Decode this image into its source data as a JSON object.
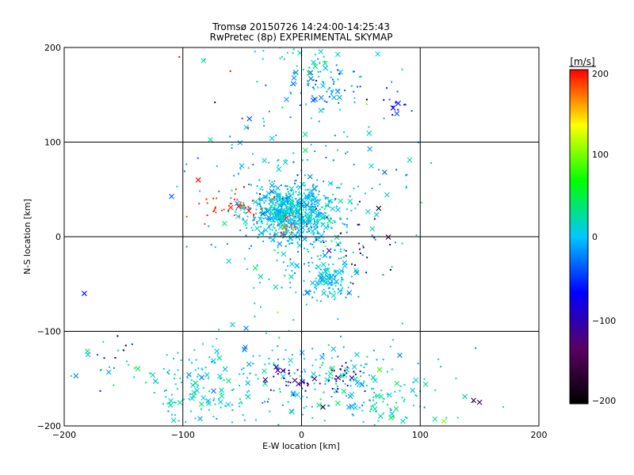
{
  "chart_data": {
    "type": "scatter",
    "title": "Tromsø 20150726 14:24:00-14:25:43",
    "subtitle": "RwPretec (8p) EXPERIMENTAL SKYMAP",
    "xlabel": "E-W location [km]",
    "ylabel": "N-S location [km]",
    "xlim": [
      -200,
      200
    ],
    "ylim": [
      -200,
      200
    ],
    "x_ticks": [
      "−200",
      "−100",
      "0",
      "100",
      "200"
    ],
    "y_ticks": [
      "−200",
      "−100",
      "0",
      "100",
      "200"
    ],
    "grid": true,
    "colorbar": {
      "label": "[m/s]",
      "range": [
        -200,
        200
      ],
      "ticks": [
        "−200",
        "−100",
        "0",
        "100",
        "200"
      ],
      "colormap": [
        "#000000",
        "#5a0064",
        "#0000ff",
        "#00c8ff",
        "#00ff00",
        "#ffff00",
        "#ff0000"
      ]
    },
    "marker_types": [
      "dot",
      "cross"
    ],
    "clusters": [
      {
        "cx": -10,
        "cy": 25,
        "sx": 18,
        "sy": 14,
        "n": 520,
        "v": 0,
        "vs": 18
      },
      {
        "cx": 0,
        "cy": 5,
        "sx": 30,
        "sy": 40,
        "n": 240,
        "v": 5,
        "vs": 18
      },
      {
        "cx": 25,
        "cy": -45,
        "sx": 8,
        "sy": 9,
        "n": 90,
        "v": 0,
        "vs": 15
      },
      {
        "cx": 20,
        "cy": 160,
        "sx": 18,
        "sy": 12,
        "n": 80,
        "v": -10,
        "vs": 20
      },
      {
        "cx": 0,
        "cy": -150,
        "sx": 55,
        "sy": 28,
        "n": 200,
        "v": 5,
        "vs": 20
      },
      {
        "cx": -90,
        "cy": -160,
        "sx": 22,
        "sy": 20,
        "n": 90,
        "v": 15,
        "vs": 12
      },
      {
        "cx": 60,
        "cy": -170,
        "sx": 35,
        "sy": 20,
        "n": 90,
        "v": 20,
        "vs": 15
      },
      {
        "cx": -40,
        "cy": 70,
        "sx": 40,
        "sy": 50,
        "n": 60,
        "v": 0,
        "vs": 20
      },
      {
        "cx": 40,
        "cy": 60,
        "sx": 40,
        "sy": 50,
        "n": 60,
        "v": 0,
        "vs": 20
      },
      {
        "cx": -5,
        "cy": 185,
        "sx": 20,
        "sy": 10,
        "n": 25,
        "v": 20,
        "vs": 15
      },
      {
        "cx": -10,
        "cy": -150,
        "sx": 12,
        "sy": 10,
        "n": 30,
        "v": -110,
        "vs": 12
      },
      {
        "cx": 35,
        "cy": -150,
        "sx": 10,
        "sy": 12,
        "n": 25,
        "v": -115,
        "vs": 12
      },
      {
        "cx": -60,
        "cy": 32,
        "sx": 18,
        "sy": 8,
        "n": 40,
        "v": 190,
        "vs": 8
      },
      {
        "cx": -10,
        "cy": 8,
        "sx": 6,
        "sy": 6,
        "n": 15,
        "v": 190,
        "vs": 8
      },
      {
        "cx": 80,
        "cy": 140,
        "sx": 8,
        "sy": 8,
        "n": 15,
        "v": -60,
        "vs": 15
      },
      {
        "cx": 40,
        "cy": -5,
        "sx": 20,
        "sy": 25,
        "n": 25,
        "v": -130,
        "vs": 25
      },
      {
        "cx": -160,
        "cy": -130,
        "sx": 18,
        "sy": 18,
        "n": 20,
        "v": 0,
        "vs": 40
      }
    ],
    "points": [
      {
        "x": -103,
        "y": 190,
        "v": 200,
        "m": "dot"
      },
      {
        "x": -60,
        "y": 175,
        "v": 200,
        "m": "dot"
      },
      {
        "x": -73,
        "y": 142,
        "v": -200,
        "m": "dot"
      },
      {
        "x": -50,
        "y": 125,
        "v": 200,
        "m": "dot"
      },
      {
        "x": -45,
        "y": 115,
        "v": 200,
        "m": "dot"
      },
      {
        "x": -87,
        "y": 60,
        "v": 200,
        "m": "cross"
      },
      {
        "x": 65,
        "y": 30,
        "v": -200,
        "m": "cross"
      },
      {
        "x": -183,
        "y": -60,
        "v": -60,
        "m": "cross"
      },
      {
        "x": 145,
        "y": -173,
        "v": -160,
        "m": "cross"
      },
      {
        "x": 150,
        "y": -175,
        "v": -150,
        "m": "cross"
      },
      {
        "x": 120,
        "y": -195,
        "v": 100,
        "m": "cross"
      },
      {
        "x": 18,
        "y": -180,
        "v": -200,
        "m": "cross"
      },
      {
        "x": -150,
        "y": -120,
        "v": -200,
        "m": "dot"
      },
      {
        "x": -148,
        "y": -115,
        "v": -200,
        "m": "dot"
      },
      {
        "x": -155,
        "y": -105,
        "v": -200,
        "m": "dot"
      },
      {
        "x": -157,
        "y": -128,
        "v": -200,
        "m": "dot"
      },
      {
        "x": 45,
        "y": -30,
        "v": -200,
        "m": "dot"
      },
      {
        "x": 75,
        "y": -35,
        "v": -200,
        "m": "dot"
      },
      {
        "x": -35,
        "y": 45,
        "v": -200,
        "m": "dot"
      },
      {
        "x": 0,
        "y": 35,
        "v": -200,
        "m": "dot"
      },
      {
        "x": 55,
        "y": 145,
        "v": -200,
        "m": "dot"
      },
      {
        "x": 20,
        "y": -10,
        "v": 100,
        "m": "dot"
      },
      {
        "x": 30,
        "y": 0,
        "v": 100,
        "m": "dot"
      },
      {
        "x": 55,
        "y": 140,
        "v": 100,
        "m": "dot"
      },
      {
        "x": -20,
        "y": -80,
        "v": 100,
        "m": "dot"
      },
      {
        "x": 170,
        "y": -180,
        "v": 0,
        "m": "dot"
      }
    ]
  }
}
